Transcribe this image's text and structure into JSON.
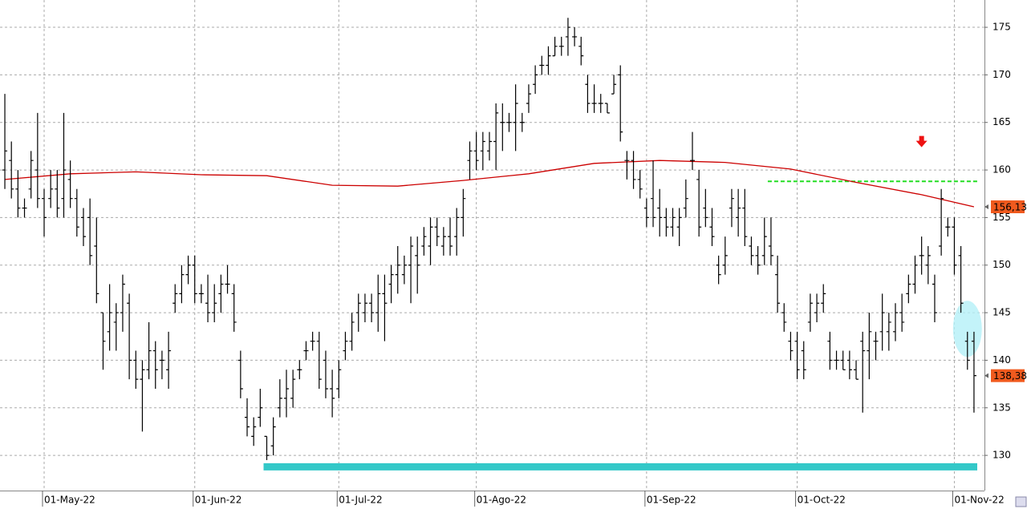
{
  "chart_data": {
    "type": "ohlc",
    "color": "#000000",
    "xlim": [
      -0.74,
      149.6
    ],
    "ylim": [
      126.3,
      177.87
    ],
    "yticks": [
      130,
      135,
      140,
      145,
      150,
      155,
      160,
      165,
      170,
      175
    ],
    "xticks": [
      {
        "value": 6,
        "label": "01-May-22"
      },
      {
        "value": 29,
        "label": "01-Jun-22"
      },
      {
        "value": 51,
        "label": "01-Jul-22"
      },
      {
        "value": 72,
        "label": "01-Ago-22"
      },
      {
        "value": 98,
        "label": "01-Sep-22"
      },
      {
        "value": 121,
        "label": "01-Oct-22"
      },
      {
        "value": 145,
        "label": "01-Nov-22"
      }
    ],
    "grid": true,
    "ohlc": [
      [
        160,
        168,
        158,
        162
      ],
      [
        161,
        163,
        157,
        158
      ],
      [
        158,
        160,
        155,
        156
      ],
      [
        156,
        157,
        155,
        156
      ],
      [
        158,
        162,
        157,
        161
      ],
      [
        160,
        166,
        156,
        157
      ],
      [
        157,
        158,
        153,
        155
      ],
      [
        157,
        160,
        156,
        158
      ],
      [
        158,
        160,
        155,
        156
      ],
      [
        157,
        166,
        155,
        160
      ],
      [
        159,
        161,
        156,
        157
      ],
      [
        157,
        158,
        153,
        154
      ],
      [
        155,
        156,
        152,
        153
      ],
      [
        155,
        157,
        150,
        151
      ],
      [
        152,
        155,
        146,
        147
      ],
      [
        145,
        145,
        139,
        142
      ],
      [
        143,
        148,
        141,
        145
      ],
      [
        144,
        146,
        141,
        145
      ],
      [
        145,
        149,
        143,
        148
      ],
      [
        146,
        147,
        138,
        140
      ],
      [
        140,
        141,
        137,
        138
      ],
      [
        138,
        140,
        132.5,
        139
      ],
      [
        139,
        144,
        138,
        141
      ],
      [
        141,
        142,
        137,
        139
      ],
      [
        140,
        141,
        138,
        140
      ],
      [
        139,
        143,
        137,
        141
      ],
      [
        146,
        148,
        145,
        147
      ],
      [
        147,
        150,
        146,
        149
      ],
      [
        149,
        151,
        148,
        150
      ],
      [
        150,
        151,
        146,
        147
      ],
      [
        147,
        148,
        146,
        147
      ],
      [
        146,
        149,
        144,
        145
      ],
      [
        145,
        148,
        144,
        146
      ],
      [
        147,
        149,
        145,
        148
      ],
      [
        148,
        150,
        147,
        148
      ],
      [
        147,
        148,
        143,
        144
      ],
      [
        140,
        141,
        136,
        137
      ],
      [
        134,
        136,
        132,
        133
      ],
      [
        132,
        134,
        131,
        133
      ],
      [
        134,
        137,
        133,
        135
      ],
      [
        132,
        132,
        129.5,
        130
      ],
      [
        131,
        134,
        130,
        133
      ],
      [
        135,
        138,
        134,
        136
      ],
      [
        136,
        139,
        134,
        137
      ],
      [
        136,
        139,
        135,
        138
      ],
      [
        139,
        140,
        138,
        139
      ],
      [
        141,
        142,
        140,
        141
      ],
      [
        142,
        143,
        141,
        142
      ],
      [
        142,
        143,
        137,
        138
      ],
      [
        140,
        141,
        136,
        137
      ],
      [
        137,
        139,
        134,
        136
      ],
      [
        137,
        140,
        136,
        139
      ],
      [
        141,
        143,
        140,
        142
      ],
      [
        142,
        145,
        141,
        144
      ],
      [
        145,
        147,
        143,
        146
      ],
      [
        145,
        147,
        144,
        146
      ],
      [
        146,
        147,
        144,
        145
      ],
      [
        145,
        149,
        143,
        147
      ],
      [
        147,
        149,
        142,
        146
      ],
      [
        148,
        150,
        146,
        149
      ],
      [
        149,
        152,
        147,
        150
      ],
      [
        149,
        151,
        148,
        150
      ],
      [
        150,
        153,
        146,
        152
      ],
      [
        151,
        153,
        147,
        150
      ],
      [
        152,
        154,
        151,
        153
      ],
      [
        152,
        155,
        150,
        154
      ],
      [
        154,
        155,
        152,
        153
      ],
      [
        152,
        154,
        151,
        153
      ],
      [
        153,
        155,
        151,
        152
      ],
      [
        153,
        156,
        151,
        155
      ],
      [
        155,
        158,
        153,
        157
      ],
      [
        161,
        163,
        159,
        162
      ],
      [
        162,
        164,
        160,
        161
      ],
      [
        162,
        164,
        160,
        163
      ],
      [
        162,
        164,
        161,
        163
      ],
      [
        163,
        167,
        160,
        166
      ],
      [
        165,
        167,
        162,
        165
      ],
      [
        165,
        166,
        164,
        165
      ],
      [
        165,
        169,
        162,
        167
      ],
      [
        165,
        166,
        164,
        165
      ],
      [
        167,
        169,
        166,
        168
      ],
      [
        169,
        171,
        168,
        170
      ],
      [
        171,
        172,
        170,
        171
      ],
      [
        171,
        173,
        170,
        172
      ],
      [
        172,
        174,
        172,
        173
      ],
      [
        173,
        174,
        172,
        173
      ],
      [
        174,
        176,
        172,
        175
      ],
      [
        174,
        175,
        173,
        174
      ],
      [
        173,
        174,
        171,
        172
      ],
      [
        169,
        170,
        166,
        167
      ],
      [
        167,
        169,
        166,
        167
      ],
      [
        167,
        168,
        166,
        167
      ],
      [
        167,
        167,
        166,
        166
      ],
      [
        168,
        170,
        168,
        169
      ],
      [
        170,
        171,
        163,
        164
      ],
      [
        161,
        162,
        159,
        161
      ],
      [
        161,
        162,
        158,
        159
      ],
      [
        159,
        160,
        157,
        158
      ],
      [
        156,
        157,
        154,
        155
      ],
      [
        157,
        161,
        154,
        155
      ],
      [
        156,
        158,
        153,
        155
      ],
      [
        155,
        156,
        153,
        154
      ],
      [
        154,
        156,
        153,
        155
      ],
      [
        154,
        156,
        152,
        155
      ],
      [
        156,
        159,
        155,
        157
      ],
      [
        161,
        164,
        160,
        161
      ],
      [
        159,
        160,
        153,
        154
      ],
      [
        156,
        158,
        154,
        155
      ],
      [
        154,
        156,
        152,
        153
      ],
      [
        150,
        151,
        148,
        149
      ],
      [
        150,
        153,
        149,
        151
      ],
      [
        156,
        158,
        154,
        157
      ],
      [
        155,
        158,
        153,
        156
      ],
      [
        156,
        158,
        152,
        153
      ],
      [
        152,
        153,
        150,
        151
      ],
      [
        151,
        152,
        149,
        150
      ],
      [
        151,
        155,
        150,
        153
      ],
      [
        152,
        155,
        150,
        151
      ],
      [
        149,
        151,
        145,
        146
      ],
      [
        145,
        146,
        143,
        144
      ],
      [
        142,
        143,
        140,
        141
      ],
      [
        142,
        143,
        138,
        139
      ],
      [
        141,
        142,
        138,
        139
      ],
      [
        144,
        147,
        143,
        146
      ],
      [
        145,
        147,
        144,
        146
      ],
      [
        146,
        148,
        145,
        147
      ],
      [
        142,
        143,
        139,
        140
      ],
      [
        140,
        141,
        139,
        140
      ],
      [
        140,
        141,
        139,
        139
      ],
      [
        140,
        141,
        138,
        139
      ],
      [
        139,
        140,
        138,
        138
      ],
      [
        142,
        143,
        134.5,
        141
      ],
      [
        141,
        145,
        138,
        143
      ],
      [
        142,
        143,
        140,
        142
      ],
      [
        143,
        147,
        141,
        145
      ],
      [
        143,
        145,
        141,
        144
      ],
      [
        143,
        146,
        142,
        145
      ],
      [
        145,
        147,
        143,
        144
      ],
      [
        147,
        149,
        146,
        148
      ],
      [
        148,
        151,
        147,
        150
      ],
      [
        151,
        153,
        149,
        151
      ],
      [
        150,
        152,
        148,
        151
      ],
      [
        148,
        149,
        144,
        145
      ],
      [
        152,
        158,
        151,
        157
      ],
      [
        154,
        155,
        153,
        154
      ],
      [
        154,
        155,
        149,
        150
      ],
      [
        151,
        152,
        145,
        146
      ],
      [
        142,
        143,
        139,
        140
      ],
      [
        142,
        143,
        134.5,
        138.38
      ]
    ],
    "lines": [
      {
        "color": "#cc0000",
        "x": [
          0,
          10,
          20,
          30,
          40,
          50,
          60,
          70,
          80,
          90,
          100,
          110,
          120,
          130,
          140,
          148
        ],
        "values": [
          159.0,
          159.6,
          159.8,
          159.5,
          159.4,
          158.4,
          158.3,
          158.9,
          159.6,
          160.7,
          161.0,
          160.8,
          160.1,
          158.7,
          157.4,
          156.13
        ]
      }
    ],
    "hlines": [
      {
        "value": 158.8,
        "from": 117,
        "color": "#22dd22",
        "style": "dashed"
      },
      {
        "value": 128.8,
        "from": 40,
        "color": "#33c8c8",
        "style": "thick"
      }
    ],
    "price_labels": [
      {
        "value": 156.13,
        "label": "156,13",
        "color": "#f05a1e"
      },
      {
        "value": 138.38,
        "label": "138,38",
        "color": "#f05a1e"
      }
    ],
    "markers": [
      {
        "shape": "arrow-down",
        "x": 140,
        "value": 162.9,
        "color": "#ee1111"
      },
      {
        "shape": "ellipse",
        "x": 147,
        "value": 143.3,
        "color": "#b4f0f8"
      }
    ]
  }
}
